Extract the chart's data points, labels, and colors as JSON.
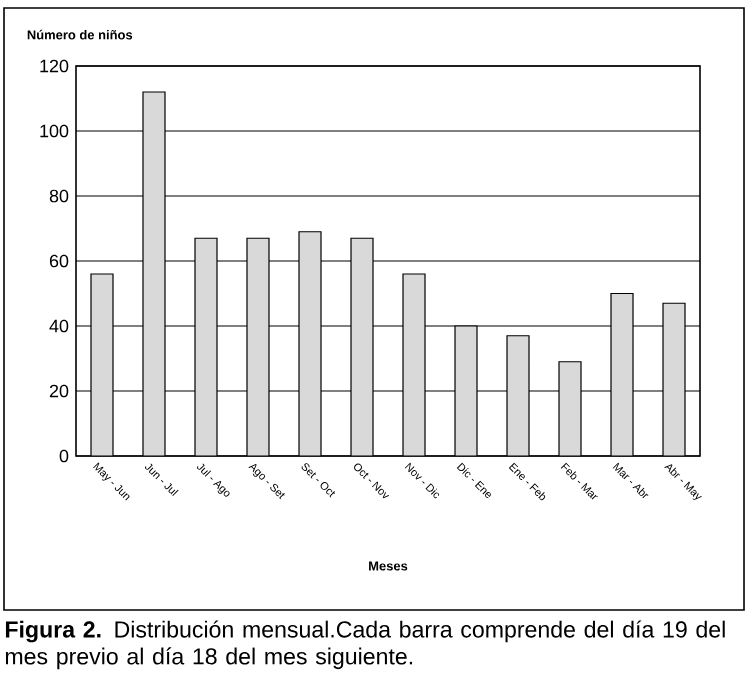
{
  "chart_data": {
    "type": "bar",
    "ylabel": "Número de niños",
    "xlabel": "Meses",
    "categories": [
      "May - Jun",
      "Jun - Jul",
      "Jul - Ago",
      "Ago - Set",
      "Set - Oct",
      "Oct - Nov",
      "Nov - Dic",
      "Dic - Ene",
      "Ene - Feb",
      "Feb - Mar",
      "Mar - Abr",
      "Abr - May"
    ],
    "values": [
      56,
      112,
      67,
      67,
      69,
      67,
      56,
      40,
      37,
      29,
      50,
      47
    ],
    "color": "#d9d9d9",
    "ylim": [
      0,
      120
    ],
    "yticks": [
      0,
      20,
      40,
      60,
      80,
      100,
      120
    ],
    "grid": "y",
    "annotations": [
      "**Figura 2.** Distribución mensual.Cada barra comprende del día 19 del mes previo al día 18 del mes siguiente."
    ]
  }
}
